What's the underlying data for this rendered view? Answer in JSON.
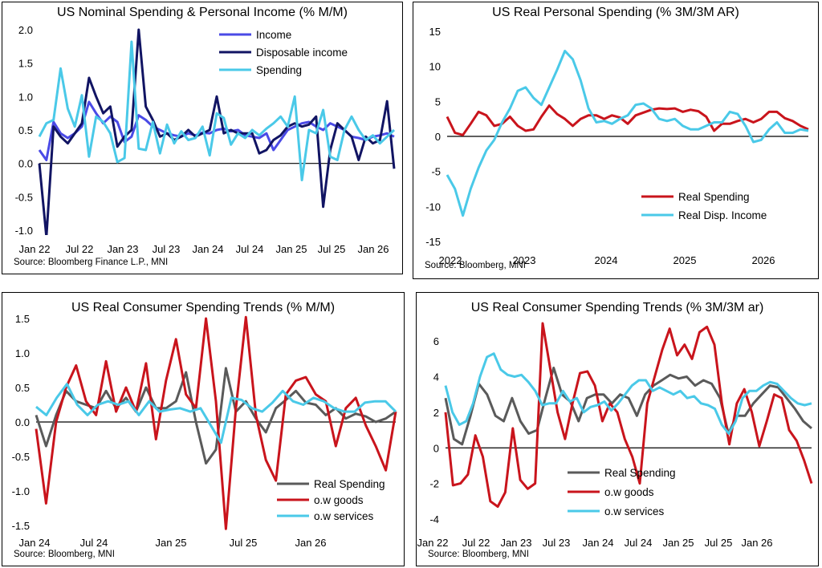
{
  "charts": [
    {
      "type": "line",
      "title": "US Nominal Spending & Personal Income (% M/M)",
      "source": "Source: Bloomberg Finance L.P., MNI",
      "ylim": [
        -1.0,
        2.0
      ],
      "yticks": [
        "2.0",
        "1.5",
        "1.0",
        "0.5",
        "0.0",
        "-0.5",
        "-1.0"
      ],
      "ytick_values": [
        2.0,
        1.5,
        1.0,
        0.5,
        0.0,
        -0.5,
        -1.0
      ],
      "xticks": [
        "Jan 22",
        "Jul 22",
        "Jan 23",
        "Jul 23",
        "Jan 24",
        "Jul 24",
        "Jan 25",
        "Jul 25",
        "Jan 26"
      ],
      "legend_position": "top-center",
      "grid": false,
      "colors": {
        "income": "#4a4ae6",
        "disposable": "#111463",
        "spending": "#4ac9e8"
      },
      "series": [
        {
          "name": "Income",
          "values": [
            0.2,
            0.05,
            0.62,
            0.45,
            0.38,
            0.45,
            0.55,
            0.92,
            0.75,
            0.6,
            0.7,
            0.62,
            0.32,
            0.4,
            0.72,
            0.65,
            0.55,
            0.5,
            0.45,
            0.42,
            0.4,
            0.45,
            0.42,
            0.46,
            0.45,
            0.5,
            0.52,
            0.48,
            0.5,
            0.42,
            0.4,
            0.38,
            0.45,
            0.2,
            0.35,
            0.5,
            0.55,
            0.6,
            0.62,
            0.55,
            0.5,
            0.6,
            0.55,
            0.5,
            0.4,
            0.38,
            0.35,
            0.4,
            0.42,
            0.45,
            0.4
          ]
        },
        {
          "name": "Disposable income",
          "values": [
            0.0,
            -1.1,
            0.55,
            0.4,
            0.3,
            0.45,
            0.6,
            1.28,
            1.0,
            0.75,
            0.85,
            0.25,
            0.4,
            0.5,
            2.0,
            0.85,
            0.65,
            0.4,
            0.45,
            0.35,
            0.4,
            0.5,
            0.4,
            0.45,
            0.5,
            1.0,
            0.45,
            0.5,
            0.45,
            0.45,
            0.45,
            0.15,
            0.2,
            0.35,
            0.42,
            0.55,
            0.6,
            0.55,
            0.58,
            0.7,
            -0.65,
            0.2,
            0.6,
            0.5,
            0.4,
            0.05,
            0.4,
            0.3,
            0.35,
            0.93,
            -0.08
          ]
        },
        {
          "name": "Spending",
          "values": [
            0.4,
            0.6,
            0.65,
            1.42,
            0.82,
            0.55,
            1.02,
            0.1,
            0.7,
            0.62,
            0.45,
            0.02,
            0.08,
            1.82,
            0.22,
            0.2,
            0.62,
            0.15,
            0.58,
            0.3,
            0.48,
            0.35,
            0.38,
            0.55,
            0.12,
            0.75,
            0.68,
            0.28,
            0.45,
            0.38,
            0.5,
            0.42,
            0.52,
            0.6,
            0.7,
            0.55,
            1.0,
            -0.25,
            0.5,
            0.45,
            0.8,
            0.1,
            0.05,
            0.5,
            0.7,
            0.5,
            0.35,
            0.42,
            0.3,
            0.4,
            0.5
          ]
        }
      ]
    },
    {
      "type": "line",
      "title": "US Real Personal Spending (% 3M/3M AR)",
      "source": "Source: Bloomberg, MNI",
      "ylim": [
        -15,
        15
      ],
      "yticks": [
        "15",
        "10",
        "5",
        "0",
        "-5",
        "-10",
        "-15"
      ],
      "ytick_values": [
        15,
        10,
        5,
        0,
        -5,
        -10,
        -15
      ],
      "xticks": [
        "2022",
        "2023",
        "2024",
        "2025",
        "2026"
      ],
      "legend_position": "bottom-right",
      "grid": false,
      "colors": {
        "real_spending": "#c9141c",
        "real_disp_income": "#4ac9e8"
      },
      "series": [
        {
          "name": "Real Spending",
          "values": [
            2.8,
            0.5,
            0.2,
            1.8,
            3.5,
            3.0,
            1.5,
            1.8,
            2.8,
            1.5,
            0.8,
            1.0,
            2.8,
            4.4,
            3.2,
            2.5,
            1.5,
            2.5,
            3.0,
            3.0,
            2.5,
            3.0,
            2.7,
            1.8,
            3.0,
            3.4,
            3.8,
            4.0,
            3.9,
            4.0,
            3.5,
            3.8,
            3.6,
            2.8,
            0.8,
            1.8,
            1.8,
            2.2,
            2.5,
            2.0,
            2.5,
            3.5,
            3.5,
            2.6,
            2.2,
            1.5,
            1.0
          ]
        },
        {
          "name": "Real Disp. Income",
          "values": [
            -5.5,
            -7.5,
            -11.3,
            -7.5,
            -4.5,
            -2.0,
            -0.5,
            2.0,
            4.0,
            6.5,
            7.0,
            5.5,
            4.5,
            7.0,
            9.5,
            12.2,
            11.0,
            8.0,
            4.0,
            2.0,
            2.2,
            1.8,
            2.5,
            3.0,
            4.5,
            4.7,
            4.0,
            2.5,
            2.2,
            2.5,
            1.5,
            1.0,
            1.0,
            1.5,
            2.0,
            2.0,
            3.5,
            3.2,
            1.5,
            -0.8,
            -0.5,
            1.0,
            2.0,
            0.5,
            0.5,
            1.0,
            0.8
          ]
        }
      ]
    },
    {
      "type": "line",
      "title": "US Real Consumer Spending Trends (% M/M)",
      "source": "Source: Bloomberg, MNI",
      "ylim": [
        -1.5,
        1.5
      ],
      "yticks": [
        "1.5",
        "1.0",
        "0.5",
        "0.0",
        "-0.5",
        "-1.0",
        "-1.5"
      ],
      "ytick_values": [
        1.5,
        1.0,
        0.5,
        0.0,
        -0.5,
        -1.0,
        -1.5
      ],
      "xticks": [
        "Jan 24",
        "Jul 24",
        "Jan 25",
        "Jul 25",
        "Jan 26"
      ],
      "legend_position": "bottom-right",
      "grid": false,
      "colors": {
        "real_spending": "#5a5a5a",
        "goods": "#c9141c",
        "services": "#4ac9e8"
      },
      "series": [
        {
          "name": "Real Spending",
          "values": [
            0.1,
            -0.35,
            0.1,
            0.45,
            0.3,
            0.25,
            0.2,
            0.45,
            0.2,
            0.35,
            0.15,
            0.5,
            0.2,
            0.2,
            0.3,
            0.72,
            0.0,
            -0.6,
            -0.4,
            0.78,
            0.15,
            0.3,
            0.05,
            -0.15,
            0.2,
            0.32,
            0.45,
            0.28,
            0.25,
            0.1,
            0.2,
            0.05,
            0.12,
            0.08,
            0.0,
            0.05,
            0.15
          ]
        },
        {
          "name": "o.w goods",
          "values": [
            -0.1,
            -1.18,
            0.0,
            0.5,
            0.82,
            0.3,
            0.1,
            0.88,
            0.15,
            0.5,
            0.15,
            0.85,
            -0.25,
            0.6,
            1.2,
            0.4,
            0.2,
            1.5,
            0.3,
            -1.55,
            0.2,
            1.52,
            0.1,
            -0.55,
            -0.85,
            0.4,
            0.6,
            0.65,
            0.4,
            0.3,
            -0.35,
            0.2,
            0.35,
            -0.05,
            -0.35,
            -0.7,
            0.15
          ]
        },
        {
          "name": "o.w services",
          "values": [
            0.22,
            0.1,
            0.35,
            0.55,
            0.25,
            0.1,
            0.25,
            0.3,
            0.25,
            0.3,
            0.1,
            0.3,
            0.15,
            0.18,
            0.2,
            0.15,
            0.2,
            -0.05,
            -0.3,
            0.35,
            0.32,
            0.2,
            0.15,
            0.28,
            0.45,
            0.3,
            0.25,
            0.35,
            0.3,
            0.2,
            0.15,
            0.15,
            0.28,
            0.3,
            0.3,
            0.15
          ]
        }
      ]
    },
    {
      "type": "line",
      "title": "US Real Consumer Spending Trends (% 3M/3M ar)",
      "source": "Source: Bloomberg, MNI",
      "ylim": [
        -4,
        7
      ],
      "yticks": [
        "6",
        "4",
        "2",
        "0",
        "-2",
        "-4"
      ],
      "ytick_values": [
        6,
        4,
        2,
        0,
        -2,
        -4
      ],
      "xticks": [
        "Jan 22",
        "Jul 22",
        "Jan 23",
        "Jul 23",
        "Jan 24",
        "Jul 24",
        "Jan 25",
        "Jul 25",
        "Jan 26"
      ],
      "legend_position": "bottom-left",
      "grid": false,
      "colors": {
        "real_spending": "#5a5a5a",
        "goods": "#c9141c",
        "services": "#4ac9e8"
      },
      "series": [
        {
          "name": "Real Spending",
          "values": [
            2.8,
            0.5,
            0.2,
            1.8,
            3.6,
            3.0,
            1.8,
            1.5,
            2.8,
            1.5,
            0.8,
            1.0,
            2.8,
            4.5,
            3.0,
            2.6,
            1.5,
            2.8,
            3.0,
            3.0,
            2.5,
            3.0,
            2.8,
            1.8,
            3.0,
            3.5,
            3.8,
            4.1,
            3.9,
            4.0,
            3.5,
            3.8,
            3.6,
            2.8,
            0.8,
            1.8,
            1.8,
            2.5,
            3.0,
            3.5,
            3.4,
            2.8,
            2.2,
            1.5,
            1.1
          ]
        },
        {
          "name": "o.w goods",
          "values": [
            2.0,
            -2.1,
            -2.0,
            -1.5,
            0.7,
            -0.5,
            -3.0,
            -3.3,
            -2.5,
            1.1,
            -1.8,
            -2.3,
            -2.0,
            7.0,
            4.5,
            2.0,
            0.5,
            2.5,
            4.2,
            4.3,
            3.5,
            1.5,
            2.5,
            2.0,
            0.5,
            -0.5,
            -2.0,
            2.5,
            4.0,
            5.5,
            6.7,
            5.2,
            5.8,
            5.0,
            6.5,
            6.8,
            5.8,
            2.5,
            0.2,
            2.5,
            3.3,
            2.0,
            0.1,
            1.5,
            3.0,
            2.8,
            1.0,
            0.4,
            -0.7,
            -2.0
          ]
        },
        {
          "name": "o.w services",
          "values": [
            3.5,
            2.0,
            1.3,
            1.5,
            2.5,
            4.0,
            5.1,
            5.3,
            4.4,
            4.1,
            4.0,
            4.1,
            3.7,
            3.2,
            2.4,
            2.5,
            2.5,
            3.2,
            2.6,
            2.8,
            2.0,
            2.3,
            2.4,
            2.6,
            2.1,
            2.5,
            3.0,
            3.5,
            3.8,
            3.8,
            3.2,
            3.4,
            3.2,
            3.0,
            3.2,
            2.8,
            2.9,
            2.5,
            2.4,
            2.2,
            1.3,
            0.8,
            1.5,
            2.8,
            3.2,
            3.2,
            3.5,
            3.7,
            3.6,
            3.2,
            2.8,
            2.5,
            2.4,
            2.5
          ]
        }
      ]
    }
  ]
}
